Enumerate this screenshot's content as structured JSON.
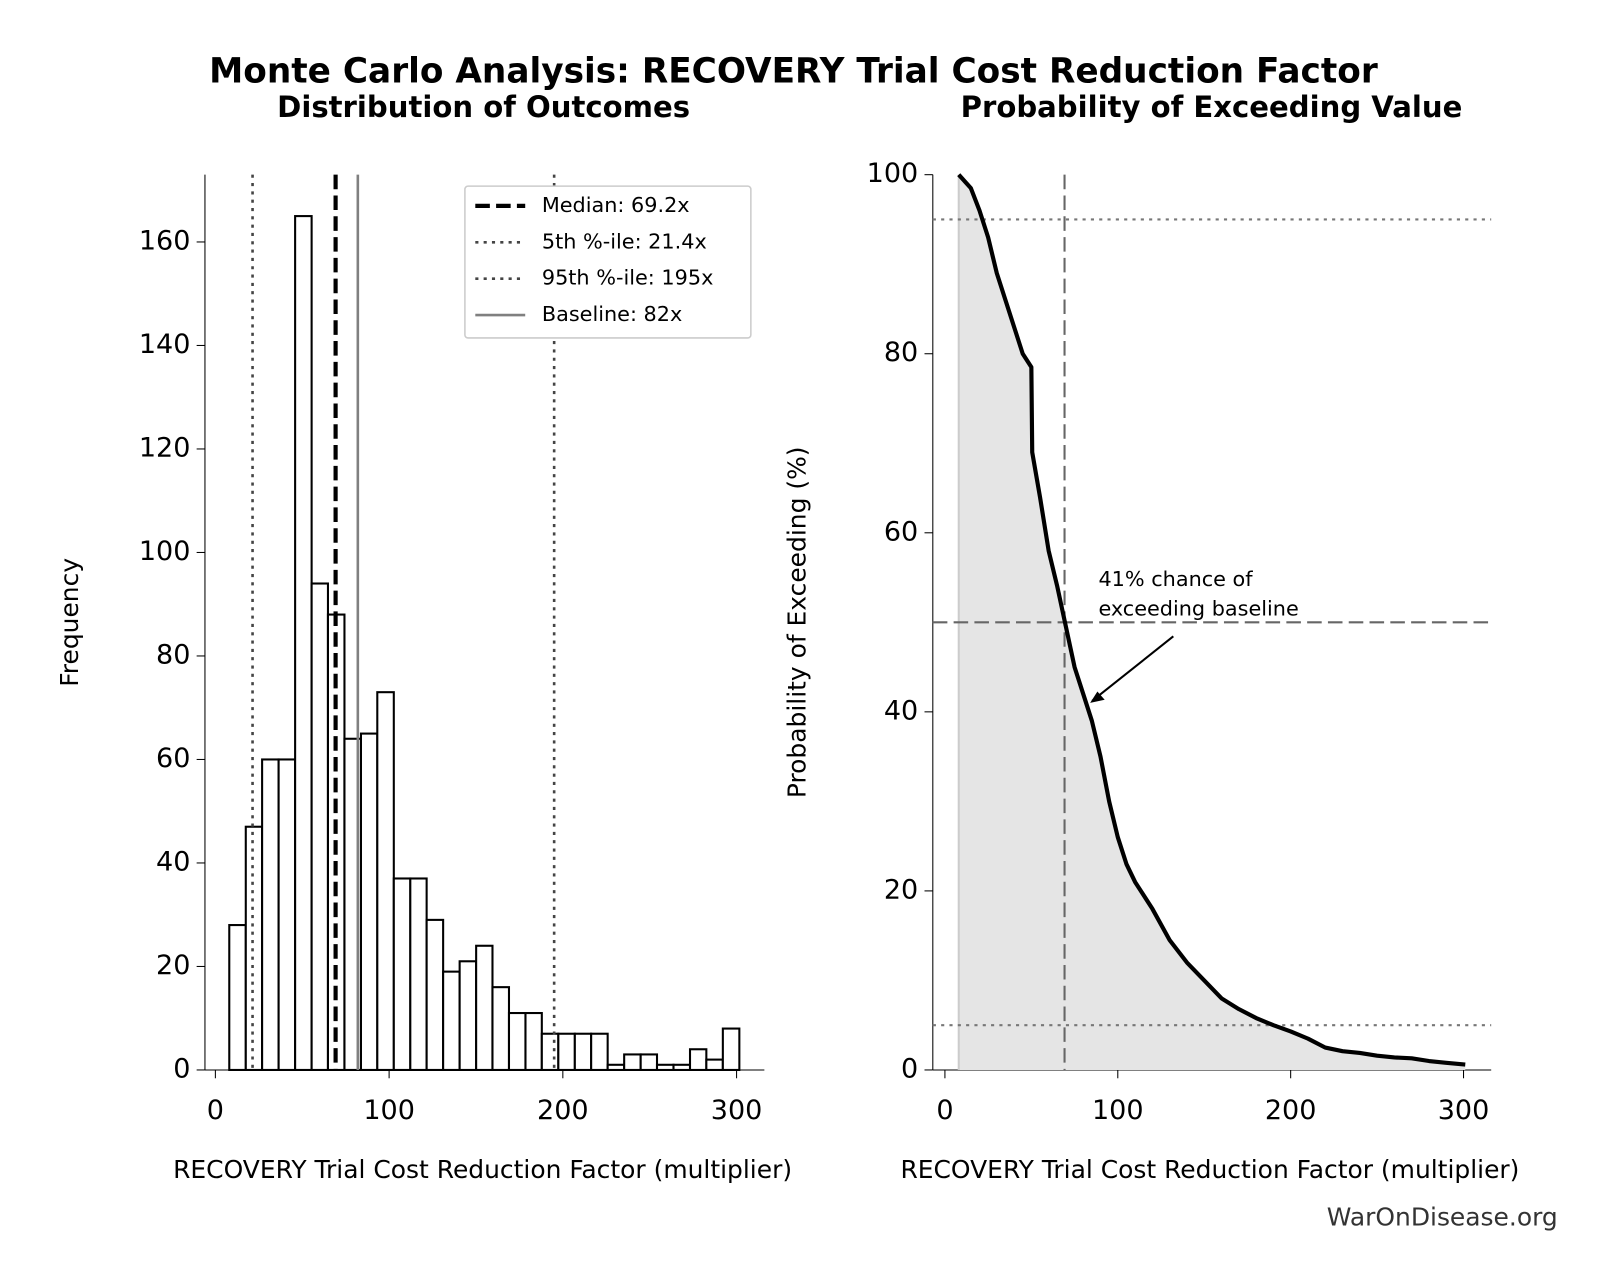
{
  "title": "Monte Carlo Analysis: RECOVERY Trial Cost Reduction Factor",
  "footer": "WarOnDisease.org",
  "chart_data": [
    {
      "type": "histogram",
      "title": "Distribution of Outcomes",
      "x_label": "RECOVERY Trial Cost Reduction Factor (multiplier)",
      "y_label": "Frequency",
      "bins": [
        8.0,
        17.5,
        26.9,
        36.4,
        45.9,
        55.4,
        64.8,
        74.3,
        83.8,
        93.2,
        102.7,
        112.2,
        121.6,
        131.1,
        140.6,
        150.1,
        159.5,
        169.0,
        178.5,
        187.9,
        197.4,
        206.9,
        216.3,
        225.8,
        235.3,
        244.8,
        254.2,
        263.7,
        273.2,
        282.6,
        292.1,
        301.6
      ],
      "values": [
        28,
        47,
        60,
        60,
        165,
        94,
        88,
        64,
        65,
        73,
        37,
        37,
        29,
        19,
        21,
        24,
        16,
        11,
        11,
        7,
        7,
        7,
        7,
        1,
        3,
        3,
        1,
        1,
        4,
        2,
        8
      ],
      "color": "#ffffff",
      "edge_color": "#000000",
      "xlim": [
        -6,
        316
      ],
      "ylim": [
        0,
        173
      ],
      "xticks": [
        0,
        100,
        200,
        300
      ],
      "yticks": [
        0,
        20,
        40,
        60,
        80,
        100,
        120,
        140,
        160
      ],
      "vlines": [
        {
          "value": 69.2,
          "label": "Median: 69.2x",
          "style": "dashed",
          "color": "#000000"
        },
        {
          "value": 21.4,
          "label": "5th %-ile: 21.4x",
          "style": "dotted",
          "color": "#444444"
        },
        {
          "value": 195,
          "label": "95th %-ile: 195x",
          "style": "dotted",
          "color": "#444444"
        },
        {
          "value": 82,
          "label": "Baseline: 82x",
          "style": "solid",
          "color": "#808080"
        }
      ],
      "legend": "upper right"
    },
    {
      "type": "line",
      "title": "Probability of Exceeding Value",
      "x_label": "RECOVERY Trial Cost Reduction Factor (multiplier)",
      "y_label": "Probability of Exceeding (%)",
      "x": [
        8,
        15,
        20,
        25,
        30,
        35,
        40,
        45,
        50,
        50.5,
        55,
        60,
        65,
        70,
        75,
        80,
        85,
        90,
        95,
        100,
        105,
        110,
        120,
        130,
        140,
        150,
        160,
        170,
        180,
        190,
        200,
        210,
        220,
        230,
        240,
        250,
        260,
        270,
        280,
        290,
        301
      ],
      "values": [
        100,
        98.5,
        96,
        93,
        89,
        86,
        83,
        80,
        78.5,
        69,
        64,
        58,
        54,
        49.5,
        45,
        42,
        39,
        35,
        30,
        26,
        23,
        21,
        18,
        14.5,
        12,
        10,
        8,
        6.8,
        5.8,
        5,
        4.3,
        3.5,
        2.5,
        2.1,
        1.9,
        1.6,
        1.4,
        1.3,
        1,
        0.8,
        0.6
      ],
      "color": "#000000",
      "fill_color": "#e5e5e5",
      "xlim": [
        -7,
        316
      ],
      "ylim": [
        0,
        100
      ],
      "xticks": [
        0,
        100,
        200,
        300
      ],
      "yticks": [
        0,
        20,
        40,
        60,
        80,
        100
      ],
      "hlines": [
        {
          "value": 95,
          "style": "dotted",
          "color": "#777777"
        },
        {
          "value": 50,
          "style": "dashed",
          "color": "#666666"
        },
        {
          "value": 5,
          "style": "dotted",
          "color": "#777777"
        }
      ],
      "vlines": [
        {
          "value": 69.2,
          "style": "dashed",
          "color": "#666666"
        }
      ],
      "annotation": {
        "lines": [
          "41% chance of",
          "exceeding baseline"
        ],
        "xy": [
          84,
          41
        ]
      }
    }
  ]
}
